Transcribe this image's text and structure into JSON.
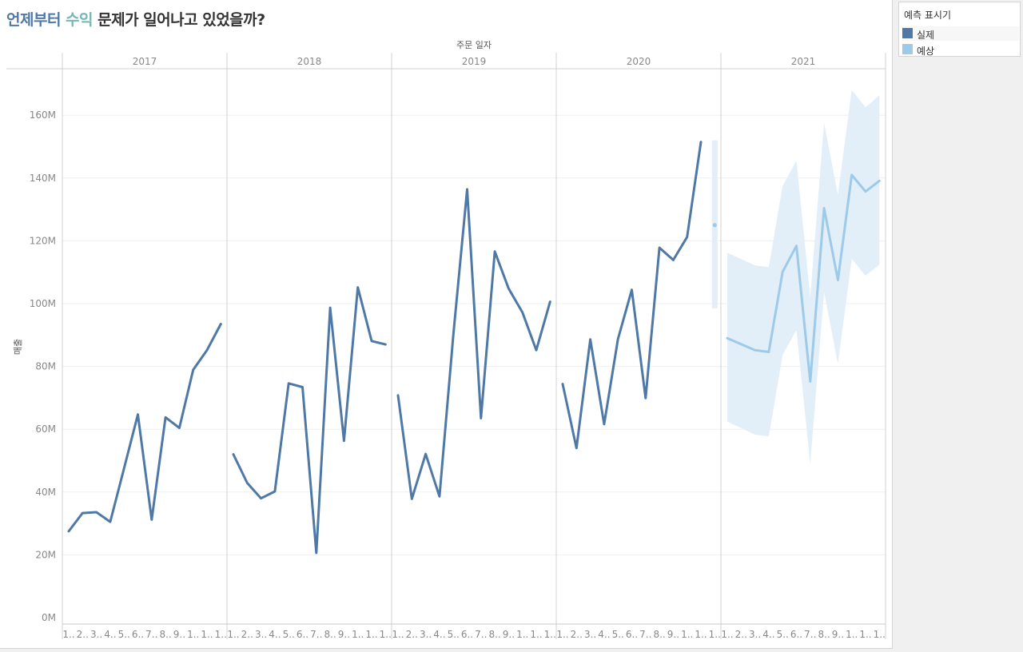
{
  "title": {
    "part1": "언제부터",
    "part2": " ",
    "part3": "수익",
    "part4": " 문제가 일어나고 있었을까?"
  },
  "legend": {
    "title": "예측 표시기",
    "items": [
      {
        "label": "실제",
        "color": "#4e79a7"
      },
      {
        "label": "예상",
        "color": "#9ecae9"
      }
    ]
  },
  "chart_data": {
    "type": "line",
    "column_header": "주문 일자",
    "years": [
      "2017",
      "2018",
      "2019",
      "2020",
      "2021"
    ],
    "y_axis_label": "매출",
    "y_ticks": [
      "0M",
      "20M",
      "40M",
      "60M",
      "80M",
      "100M",
      "120M",
      "140M",
      "160M"
    ],
    "ylim": [
      0,
      170
    ],
    "month_tick_labels": [
      "1..",
      "2..",
      "3..",
      "4..",
      "5..",
      "6..",
      "7..",
      "8..",
      "9..",
      "1..",
      "1..",
      "1.."
    ],
    "colors": {
      "actual": "#4e79a7",
      "forecast": "#9ecae9",
      "band": "#e2eef8"
    },
    "series": [
      {
        "name": "실제",
        "year": "2017",
        "values": [
          27.5,
          33.3,
          33.6,
          30.5,
          47.5,
          64.7,
          31.2,
          63.8,
          60.4,
          78.9,
          85.2,
          93.5
        ]
      },
      {
        "name": "실제",
        "year": "2018",
        "values": [
          52.0,
          42.9,
          38.0,
          40.2,
          74.6,
          73.4,
          20.6,
          98.7,
          56.3,
          105.2,
          88.1,
          87.0
        ]
      },
      {
        "name": "실제",
        "year": "2019",
        "values": [
          70.8,
          37.8,
          52.1,
          38.6,
          90.0,
          136.4,
          63.5,
          116.6,
          104.8,
          97.2,
          85.2,
          100.6
        ]
      },
      {
        "name": "실제",
        "year": "2020",
        "values": [
          74.4,
          54.0,
          88.6,
          61.6,
          88.7,
          104.4,
          69.9,
          117.8,
          113.9,
          121.2,
          151.5
        ]
      },
      {
        "name": "예상",
        "year": "2020",
        "month": 12,
        "value": 125.0,
        "range": [
          98.5,
          152.0
        ]
      },
      {
        "name": "예상",
        "year": "2021",
        "values": [
          89.0,
          87.1,
          85.2,
          84.6,
          110.1,
          118.4,
          75.2,
          130.4,
          107.5,
          141.0,
          135.7,
          139.1
        ],
        "lower": [
          62.4,
          60.4,
          58.3,
          57.7,
          83.7,
          91.6,
          49.0,
          103.7,
          80.9,
          114.3,
          108.9,
          112.4
        ],
        "upper": [
          116.2,
          114.2,
          112.2,
          111.6,
          137.5,
          145.5,
          102.0,
          157.5,
          134.6,
          168.0,
          162.5,
          166.3
        ]
      }
    ]
  }
}
